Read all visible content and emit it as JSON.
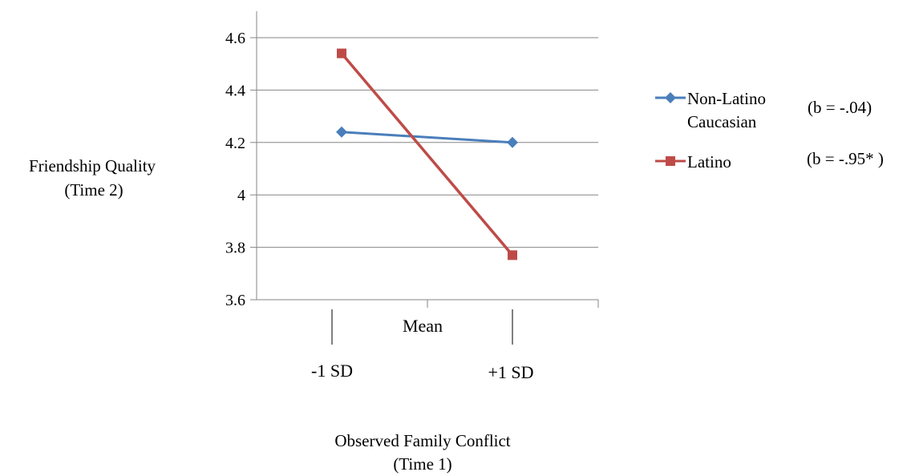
{
  "chart_data": {
    "type": "line",
    "y_axis_title": [
      "Friendship Quality",
      "(Time 2)"
    ],
    "x_axis_title": [
      "Observed Family Conflict",
      "(Time 1)"
    ],
    "ylim": [
      3.6,
      4.6
    ],
    "yticks": [
      "3.6",
      "3.8",
      "4",
      "4.2",
      "4.4",
      "4.6"
    ],
    "categories": [
      "-1 SD",
      "Mean",
      "+1 SD"
    ],
    "x": [
      "-1 SD",
      "+1 SD"
    ],
    "grid": true,
    "legend_position": "right",
    "series": [
      {
        "name": "Non-Latino Caucasian",
        "name_lines": [
          "Non-Latino",
          "Caucasian"
        ],
        "values": [
          4.24,
          4.2
        ],
        "note": "(b = -.04)",
        "color": "#4a7ebb",
        "marker": "diamond"
      },
      {
        "name": "Latino",
        "name_lines": [
          "Latino"
        ],
        "values": [
          4.54,
          3.77
        ],
        "note": "(b = -.95* )",
        "color": "#be4b48",
        "marker": "square"
      }
    ]
  }
}
